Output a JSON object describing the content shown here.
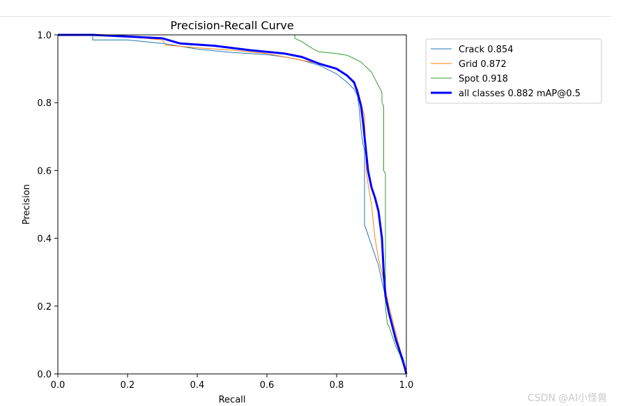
{
  "chart_data": {
    "type": "line",
    "title": "Precision-Recall Curve",
    "xlabel": "Recall",
    "ylabel": "Precision",
    "xlim": [
      0,
      1
    ],
    "ylim": [
      0,
      1
    ],
    "xticks": [
      "0.0",
      "0.2",
      "0.4",
      "0.6",
      "0.8",
      "1.0"
    ],
    "yticks": [
      "0.0",
      "0.2",
      "0.4",
      "0.6",
      "0.8",
      "1.0"
    ],
    "legend_position": "outside-top-right",
    "series": [
      {
        "name": "Crack 0.854",
        "color": "#1f77b4",
        "width": 1,
        "points": [
          [
            0,
            1.0
          ],
          [
            0.1,
            1.0
          ],
          [
            0.1,
            0.985
          ],
          [
            0.2,
            0.985
          ],
          [
            0.3,
            0.975
          ],
          [
            0.4,
            0.958
          ],
          [
            0.5,
            0.948
          ],
          [
            0.6,
            0.942
          ],
          [
            0.65,
            0.935
          ],
          [
            0.7,
            0.925
          ],
          [
            0.75,
            0.91
          ],
          [
            0.8,
            0.885
          ],
          [
            0.83,
            0.86
          ],
          [
            0.85,
            0.84
          ],
          [
            0.86,
            0.82
          ],
          [
            0.865,
            0.78
          ],
          [
            0.87,
            0.72
          ],
          [
            0.875,
            0.68
          ],
          [
            0.88,
            0.66
          ],
          [
            0.88,
            0.44
          ],
          [
            0.92,
            0.32
          ],
          [
            0.95,
            0.18
          ],
          [
            1.0,
            0.0
          ]
        ]
      },
      {
        "name": "Grid 0.872",
        "color": "#ff7f0e",
        "width": 1,
        "points": [
          [
            0,
            1.0
          ],
          [
            0.15,
            1.0
          ],
          [
            0.25,
            0.99
          ],
          [
            0.3,
            0.985
          ],
          [
            0.31,
            0.97
          ],
          [
            0.4,
            0.962
          ],
          [
            0.5,
            0.955
          ],
          [
            0.6,
            0.945
          ],
          [
            0.7,
            0.925
          ],
          [
            0.75,
            0.915
          ],
          [
            0.8,
            0.9
          ],
          [
            0.84,
            0.87
          ],
          [
            0.86,
            0.84
          ],
          [
            0.87,
            0.8
          ],
          [
            0.88,
            0.76
          ],
          [
            0.885,
            0.6
          ],
          [
            0.89,
            0.56
          ],
          [
            0.9,
            0.5
          ],
          [
            0.905,
            0.45
          ],
          [
            0.91,
            0.4
          ],
          [
            0.92,
            0.34
          ],
          [
            0.93,
            0.3
          ],
          [
            0.94,
            0.25
          ],
          [
            0.95,
            0.2
          ],
          [
            0.97,
            0.12
          ],
          [
            1.0,
            0.0
          ]
        ]
      },
      {
        "name": "Spot 0.918",
        "color": "#2ca02c",
        "width": 1,
        "points": [
          [
            0,
            1.0
          ],
          [
            0.68,
            1.0
          ],
          [
            0.68,
            0.99
          ],
          [
            0.7,
            0.98
          ],
          [
            0.73,
            0.96
          ],
          [
            0.75,
            0.95
          ],
          [
            0.8,
            0.945
          ],
          [
            0.83,
            0.94
          ],
          [
            0.85,
            0.93
          ],
          [
            0.87,
            0.92
          ],
          [
            0.88,
            0.91
          ],
          [
            0.89,
            0.9
          ],
          [
            0.9,
            0.89
          ],
          [
            0.91,
            0.87
          ],
          [
            0.92,
            0.85
          ],
          [
            0.93,
            0.83
          ],
          [
            0.93,
            0.8
          ],
          [
            0.935,
            0.79
          ],
          [
            0.935,
            0.6
          ],
          [
            0.94,
            0.59
          ],
          [
            0.94,
            0.2
          ],
          [
            0.945,
            0.15
          ],
          [
            0.95,
            0.14
          ],
          [
            0.96,
            0.11
          ],
          [
            0.97,
            0.08
          ],
          [
            0.98,
            0.06
          ],
          [
            1.0,
            0.0
          ]
        ]
      },
      {
        "name": "all classes 0.882 mAP@0.5",
        "color": "#0000ff",
        "width": 3,
        "points": [
          [
            0,
            1.0
          ],
          [
            0.1,
            1.0
          ],
          [
            0.2,
            0.995
          ],
          [
            0.3,
            0.99
          ],
          [
            0.35,
            0.975
          ],
          [
            0.45,
            0.968
          ],
          [
            0.55,
            0.955
          ],
          [
            0.6,
            0.95
          ],
          [
            0.65,
            0.945
          ],
          [
            0.7,
            0.935
          ],
          [
            0.75,
            0.915
          ],
          [
            0.8,
            0.9
          ],
          [
            0.83,
            0.88
          ],
          [
            0.85,
            0.86
          ],
          [
            0.86,
            0.83
          ],
          [
            0.87,
            0.79
          ],
          [
            0.875,
            0.75
          ],
          [
            0.88,
            0.7
          ],
          [
            0.885,
            0.65
          ],
          [
            0.89,
            0.6
          ],
          [
            0.9,
            0.55
          ],
          [
            0.91,
            0.52
          ],
          [
            0.92,
            0.48
          ],
          [
            0.93,
            0.4
          ],
          [
            0.935,
            0.3
          ],
          [
            0.94,
            0.23
          ],
          [
            0.95,
            0.18
          ],
          [
            0.97,
            0.1
          ],
          [
            0.99,
            0.04
          ],
          [
            1.0,
            0.0
          ]
        ]
      }
    ]
  },
  "watermark": "CSDN @AI小怪兽"
}
